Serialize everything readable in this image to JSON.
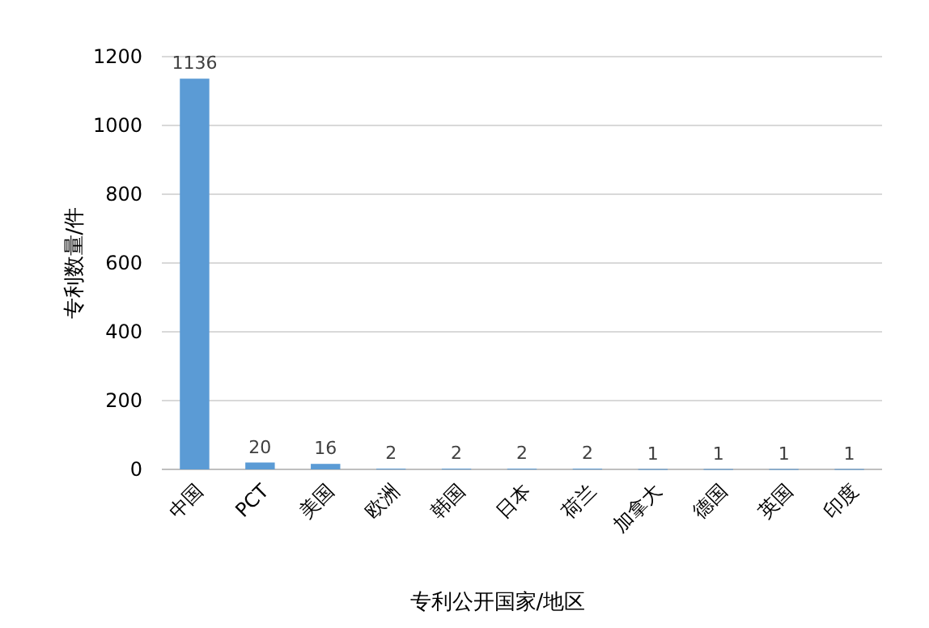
{
  "chart_data": {
    "type": "bar",
    "xlabel": "专利公开国家/地区",
    "ylabel": "专利数量/件",
    "categories": [
      "中国",
      "PCT",
      "美国",
      "欧洲",
      "韩国",
      "日本",
      "荷兰",
      "加拿大",
      "德国",
      "英国",
      "印度"
    ],
    "values": [
      1136,
      20,
      16,
      2,
      2,
      2,
      2,
      1,
      1,
      1,
      1
    ],
    "color": "#5b9bd5",
    "ylim": [
      0,
      1200
    ],
    "yticks": [
      0,
      200,
      400,
      600,
      800,
      1000,
      1200
    ],
    "grid": "y",
    "data_labels": true
  }
}
